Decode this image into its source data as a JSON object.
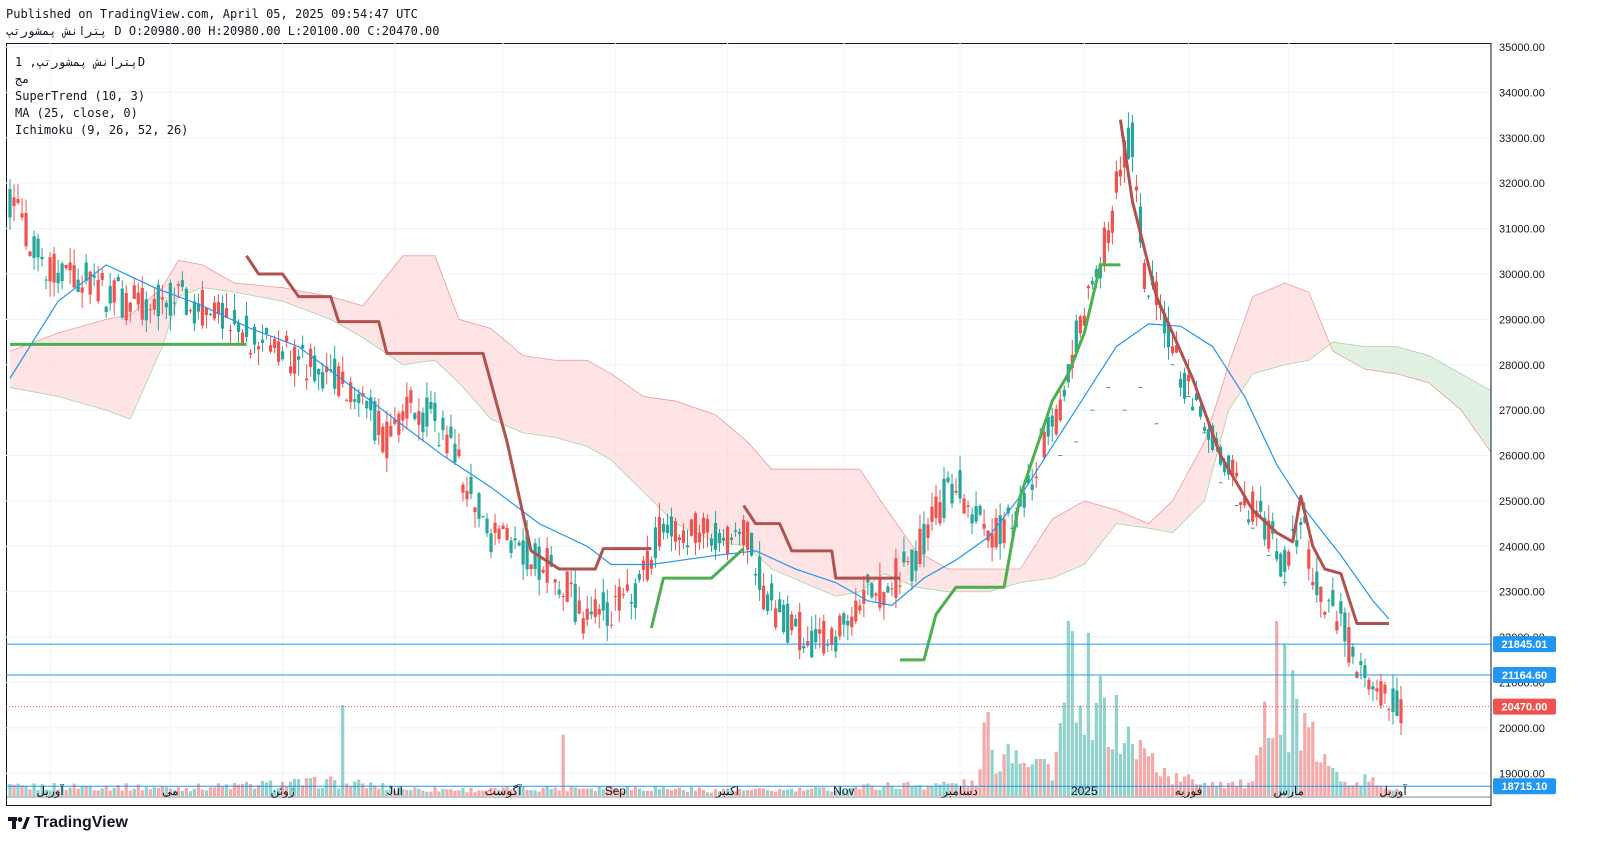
{
  "header": {
    "published": "Published on TradingView.com, April 05, 2025 09:54:47 UTC",
    "ohlc": "پترانش پمشورتپ D O:20980.00 H:20980.00 L:20100.00 C:20470.00"
  },
  "legend": {
    "symbol": "پترانش پمشورتپ, 1D",
    "exchange": "مج",
    "supertrend": "SuperTrend (10, 3)",
    "ma": "MA (25, close, 0)",
    "ichimoku": "Ichimoku (9, 26, 52, 26)"
  },
  "brand": {
    "logo_text": "TradingView"
  },
  "colors": {
    "up": "#26a69a",
    "down": "#ef5350",
    "supertrend_up": "#4caf50",
    "supertrend_down": "#b2524f",
    "ma": "#2196f3",
    "cloud_bull": "#c8e6c9",
    "cloud_bear": "#ffcdd2",
    "hline": "#2196f3",
    "last_price": "#ef5350"
  },
  "chart_data": {
    "type": "candlestick",
    "ylim": [
      18500,
      35000
    ],
    "y_ticks": [
      19000,
      20000,
      21000,
      22000,
      23000,
      24000,
      25000,
      26000,
      27000,
      28000,
      29000,
      30000,
      31000,
      32000,
      33000,
      34000,
      35000
    ],
    "x_ticks": [
      {
        "label": "آوریل",
        "i": 10
      },
      {
        "label": "می",
        "i": 40
      },
      {
        "label": "ژوئن",
        "i": 68
      },
      {
        "label": "Jul",
        "i": 96
      },
      {
        "label": "آگوست",
        "i": 123
      },
      {
        "label": "Sep",
        "i": 151
      },
      {
        "label": "اکتبر",
        "i": 179
      },
      {
        "label": "Nov",
        "i": 208
      },
      {
        "label": "دسامبر",
        "i": 237
      },
      {
        "label": "2025",
        "i": 268
      },
      {
        "label": "فوریه",
        "i": 294
      },
      {
        "label": "مارس",
        "i": 319
      },
      {
        "label": "آوریل",
        "i": 345
      }
    ],
    "price_lines": [
      {
        "value": 21845.01,
        "label": "21845.01"
      },
      {
        "value": 21164.6,
        "label": "21164.60"
      },
      {
        "value": 18715.1,
        "label": "18715.10"
      }
    ],
    "last_price": {
      "value": 20470.0,
      "label": "20470.00"
    },
    "price_path": [
      [
        0,
        31600
      ],
      [
        8,
        30300
      ],
      [
        16,
        30100
      ],
      [
        24,
        29600
      ],
      [
        32,
        29300
      ],
      [
        40,
        29500
      ],
      [
        48,
        29300
      ],
      [
        55,
        29100
      ],
      [
        62,
        28500
      ],
      [
        70,
        28200
      ],
      [
        78,
        27900
      ],
      [
        86,
        27500
      ],
      [
        94,
        26300
      ],
      [
        100,
        27100
      ],
      [
        108,
        26600
      ],
      [
        114,
        25400
      ],
      [
        120,
        24100
      ],
      [
        128,
        24000
      ],
      [
        136,
        23400
      ],
      [
        144,
        22400
      ],
      [
        150,
        22700
      ],
      [
        156,
        23000
      ],
      [
        162,
        24300
      ],
      [
        168,
        24400
      ],
      [
        176,
        24100
      ],
      [
        184,
        24300
      ],
      [
        188,
        23000
      ],
      [
        194,
        22300
      ],
      [
        200,
        22000
      ],
      [
        206,
        22100
      ],
      [
        212,
        22900
      ],
      [
        218,
        23100
      ],
      [
        224,
        23500
      ],
      [
        230,
        24600
      ],
      [
        236,
        25500
      ],
      [
        240,
        24800
      ],
      [
        244,
        24200
      ],
      [
        250,
        24500
      ],
      [
        256,
        25800
      ],
      [
        262,
        27000
      ],
      [
        266,
        28600
      ],
      [
        270,
        29900
      ],
      [
        274,
        30800
      ],
      [
        277,
        32400
      ],
      [
        280,
        33000
      ],
      [
        283,
        30100
      ],
      [
        286,
        29600
      ],
      [
        290,
        28200
      ],
      [
        296,
        27200
      ],
      [
        302,
        26200
      ],
      [
        308,
        25100
      ],
      [
        314,
        24300
      ],
      [
        318,
        23600
      ],
      [
        322,
        24700
      ],
      [
        326,
        23100
      ],
      [
        332,
        22400
      ],
      [
        336,
        21300
      ],
      [
        340,
        21100
      ],
      [
        344,
        20500
      ],
      [
        347,
        20470
      ]
    ],
    "volume_path": [
      [
        0,
        50
      ],
      [
        20,
        55
      ],
      [
        40,
        45
      ],
      [
        60,
        60
      ],
      [
        80,
        80
      ],
      [
        100,
        40
      ],
      [
        120,
        35
      ],
      [
        140,
        50
      ],
      [
        160,
        45
      ],
      [
        180,
        30
      ],
      [
        200,
        35
      ],
      [
        220,
        60
      ],
      [
        240,
        70
      ],
      [
        250,
        300
      ],
      [
        260,
        150
      ],
      [
        268,
        1000
      ],
      [
        272,
        500
      ],
      [
        280,
        300
      ],
      [
        290,
        100
      ],
      [
        310,
        60
      ],
      [
        318,
        900
      ],
      [
        322,
        400
      ],
      [
        330,
        120
      ],
      [
        340,
        80
      ],
      [
        347,
        20
      ]
    ],
    "spikes": [
      {
        "i": 83,
        "v": 520
      },
      {
        "i": 138,
        "v": 350
      },
      {
        "i": 243,
        "v": 420
      },
      {
        "i": 244,
        "v": 480
      },
      {
        "i": 264,
        "v": 1000
      },
      {
        "i": 266,
        "v": 420
      },
      {
        "i": 268,
        "v": 350
      },
      {
        "i": 270,
        "v": 320
      },
      {
        "i": 316,
        "v": 1000
      },
      {
        "i": 317,
        "v": 350
      },
      {
        "i": 319,
        "v": 250
      }
    ],
    "supertrend": [
      {
        "mode": "up",
        "points": [
          [
            0,
            28450
          ],
          [
            59,
            28450
          ]
        ]
      },
      {
        "mode": "down",
        "points": [
          [
            59,
            30400
          ],
          [
            62,
            30000
          ],
          [
            68,
            30000
          ],
          [
            72,
            29500
          ],
          [
            80,
            29500
          ],
          [
            82,
            28950
          ],
          [
            92,
            28950
          ],
          [
            94,
            28250
          ],
          [
            118,
            28250
          ],
          [
            124,
            26300
          ],
          [
            130,
            23900
          ],
          [
            137,
            23500
          ],
          [
            146,
            23500
          ],
          [
            148,
            23950
          ],
          [
            160,
            23950
          ]
        ]
      },
      {
        "mode": "up",
        "points": [
          [
            160,
            22200
          ],
          [
            163,
            23300
          ],
          [
            175,
            23300
          ],
          [
            183,
            23950
          ]
        ]
      },
      {
        "mode": "down",
        "points": [
          [
            183,
            24900
          ],
          [
            186,
            24500
          ],
          [
            192,
            24500
          ],
          [
            195,
            23900
          ],
          [
            205,
            23900
          ],
          [
            206,
            23300
          ],
          [
            222,
            23300
          ]
        ]
      },
      {
        "mode": "up",
        "points": [
          [
            222,
            21500
          ],
          [
            228,
            21500
          ],
          [
            231,
            22500
          ],
          [
            236,
            23100
          ],
          [
            248,
            23100
          ],
          [
            252,
            25100
          ],
          [
            260,
            27200
          ],
          [
            264,
            27800
          ],
          [
            268,
            28700
          ],
          [
            272,
            30200
          ],
          [
            277,
            30200
          ]
        ]
      },
      {
        "mode": "down",
        "points": [
          [
            277,
            33400
          ],
          [
            280,
            31600
          ],
          [
            286,
            29500
          ],
          [
            295,
            27700
          ],
          [
            302,
            26000
          ],
          [
            310,
            24800
          ],
          [
            316,
            24300
          ],
          [
            320,
            24100
          ],
          [
            322,
            25100
          ],
          [
            325,
            24000
          ],
          [
            328,
            23500
          ],
          [
            332,
            23400
          ],
          [
            336,
            22300
          ],
          [
            344,
            22300
          ]
        ]
      }
    ],
    "ma": [
      [
        0,
        27700
      ],
      [
        12,
        29400
      ],
      [
        24,
        30200
      ],
      [
        36,
        29700
      ],
      [
        48,
        29300
      ],
      [
        60,
        28800
      ],
      [
        72,
        28400
      ],
      [
        84,
        27600
      ],
      [
        96,
        26800
      ],
      [
        108,
        26000
      ],
      [
        120,
        25300
      ],
      [
        132,
        24500
      ],
      [
        144,
        24000
      ],
      [
        150,
        23600
      ],
      [
        160,
        23600
      ],
      [
        168,
        23700
      ],
      [
        176,
        23800
      ],
      [
        186,
        23900
      ],
      [
        196,
        23500
      ],
      [
        206,
        23200
      ],
      [
        214,
        22800
      ],
      [
        220,
        22700
      ],
      [
        228,
        23300
      ],
      [
        236,
        23700
      ],
      [
        244,
        24200
      ],
      [
        252,
        25100
      ],
      [
        260,
        26200
      ],
      [
        268,
        27300
      ],
      [
        276,
        28400
      ],
      [
        284,
        28900
      ],
      [
        292,
        28850
      ],
      [
        300,
        28400
      ],
      [
        308,
        27300
      ],
      [
        316,
        25800
      ],
      [
        324,
        24700
      ],
      [
        332,
        23800
      ],
      [
        340,
        22800
      ],
      [
        344,
        22400
      ]
    ],
    "cloud": {
      "upper": [
        [
          0,
          28300
        ],
        [
          12,
          28700
        ],
        [
          24,
          29000
        ],
        [
          30,
          29100
        ],
        [
          38,
          29700
        ],
        [
          42,
          30300
        ],
        [
          48,
          30200
        ],
        [
          56,
          29800
        ],
        [
          68,
          29700
        ],
        [
          80,
          29500
        ],
        [
          88,
          29300
        ],
        [
          98,
          30400
        ],
        [
          106,
          30400
        ],
        [
          112,
          29000
        ],
        [
          120,
          28800
        ],
        [
          128,
          28200
        ],
        [
          136,
          28100
        ],
        [
          144,
          28100
        ],
        [
          150,
          27800
        ],
        [
          158,
          27300
        ],
        [
          166,
          27200
        ],
        [
          176,
          26900
        ],
        [
          184,
          26300
        ],
        [
          190,
          25700
        ],
        [
          198,
          25700
        ],
        [
          206,
          25700
        ],
        [
          212,
          25700
        ],
        [
          218,
          24900
        ],
        [
          226,
          23900
        ],
        [
          234,
          23500
        ],
        [
          244,
          23500
        ],
        [
          252,
          23500
        ],
        [
          260,
          24600
        ],
        [
          268,
          25000
        ],
        [
          276,
          24800
        ],
        [
          284,
          24500
        ],
        [
          290,
          25000
        ],
        [
          298,
          26300
        ],
        [
          304,
          28000
        ],
        [
          310,
          29500
        ],
        [
          318,
          29800
        ],
        [
          324,
          29600
        ],
        [
          330,
          28300
        ],
        [
          338,
          27900
        ],
        [
          346,
          27800
        ],
        [
          354,
          27600
        ],
        [
          362,
          27000
        ],
        [
          370,
          26000
        ],
        [
          378,
          24400
        ],
        [
          385,
          23400
        ]
      ],
      "lower": [
        [
          0,
          27500
        ],
        [
          12,
          27300
        ],
        [
          24,
          27000
        ],
        [
          30,
          26800
        ],
        [
          38,
          28400
        ],
        [
          42,
          29500
        ],
        [
          48,
          29700
        ],
        [
          56,
          29600
        ],
        [
          68,
          29400
        ],
        [
          80,
          29000
        ],
        [
          88,
          28600
        ],
        [
          98,
          28000
        ],
        [
          106,
          28100
        ],
        [
          112,
          27600
        ],
        [
          120,
          26800
        ],
        [
          128,
          26500
        ],
        [
          136,
          26400
        ],
        [
          144,
          26200
        ],
        [
          150,
          25900
        ],
        [
          158,
          25200
        ],
        [
          166,
          24500
        ],
        [
          176,
          24100
        ],
        [
          184,
          24000
        ],
        [
          190,
          23500
        ],
        [
          198,
          23200
        ],
        [
          206,
          22900
        ],
        [
          212,
          23000
        ],
        [
          218,
          23400
        ],
        [
          226,
          23100
        ],
        [
          234,
          23000
        ],
        [
          244,
          23000
        ],
        [
          252,
          23200
        ],
        [
          260,
          23300
        ],
        [
          268,
          23600
        ],
        [
          276,
          24500
        ],
        [
          284,
          24400
        ],
        [
          290,
          24300
        ],
        [
          298,
          25000
        ],
        [
          304,
          27000
        ],
        [
          310,
          27800
        ],
        [
          318,
          28000
        ],
        [
          324,
          28100
        ],
        [
          330,
          28500
        ],
        [
          338,
          28400
        ],
        [
          346,
          28400
        ],
        [
          354,
          28200
        ],
        [
          362,
          27800
        ],
        [
          370,
          27400
        ],
        [
          378,
          27200
        ],
        [
          385,
          27000
        ]
      ]
    },
    "lagging_span_tail": [
      [
        262,
        26000
      ],
      [
        266,
        26300
      ],
      [
        270,
        27000
      ],
      [
        274,
        27500
      ],
      [
        278,
        27000
      ],
      [
        282,
        27500
      ],
      [
        286,
        26700
      ],
      [
        290,
        28000
      ],
      [
        294,
        27300
      ],
      [
        298,
        26500
      ],
      [
        302,
        25400
      ],
      [
        306,
        24900
      ],
      [
        310,
        24400
      ],
      [
        314,
        23800
      ],
      [
        318,
        23200
      ]
    ]
  }
}
